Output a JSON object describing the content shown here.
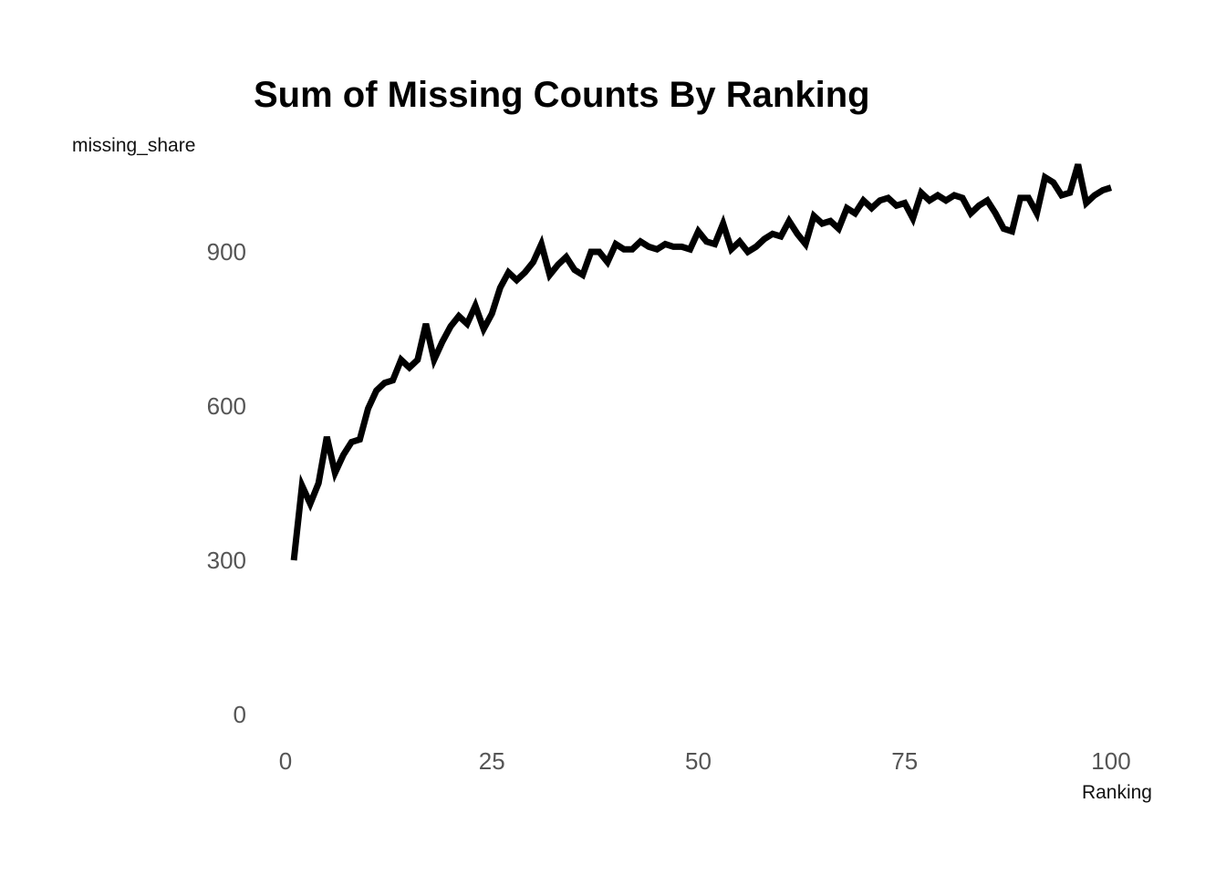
{
  "chart_data": {
    "type": "line",
    "title": "Sum of Missing Counts By Ranking",
    "xlabel": "Ranking",
    "ylabel": "missing_share",
    "xlim": [
      0,
      100
    ],
    "ylim": [
      0,
      1080
    ],
    "x_ticks": [
      0,
      25,
      50,
      75,
      100
    ],
    "y_ticks": [
      0,
      300,
      600,
      900
    ],
    "grid": false,
    "legend": "none",
    "line_color": "#000000",
    "series": [
      {
        "x": [
          1,
          2,
          3,
          4,
          5,
          6,
          7,
          8,
          9,
          10,
          11,
          12,
          13,
          14,
          15,
          16,
          17,
          18,
          19,
          20,
          21,
          22,
          23,
          24,
          25,
          26,
          27,
          28,
          29,
          30,
          31,
          32,
          33,
          34,
          35,
          36,
          37,
          38,
          39,
          40,
          41,
          42,
          43,
          44,
          45,
          46,
          47,
          48,
          49,
          50,
          51,
          52,
          53,
          54,
          55,
          56,
          57,
          58,
          59,
          60,
          61,
          62,
          63,
          64,
          65,
          66,
          67,
          68,
          69,
          70,
          71,
          72,
          73,
          74,
          75,
          76,
          77,
          78,
          79,
          80,
          81,
          82,
          83,
          84,
          85,
          86,
          87,
          88,
          89,
          90,
          91,
          92,
          93,
          94,
          95,
          96,
          97,
          98,
          99,
          100
        ],
        "values": [
          300,
          445,
          410,
          450,
          540,
          470,
          505,
          530,
          535,
          595,
          630,
          645,
          650,
          690,
          675,
          690,
          760,
          690,
          725,
          755,
          775,
          760,
          795,
          750,
          780,
          830,
          860,
          845,
          860,
          880,
          915,
          855,
          875,
          890,
          865,
          855,
          900,
          900,
          880,
          915,
          905,
          905,
          920,
          910,
          905,
          915,
          910,
          910,
          905,
          940,
          920,
          915,
          955,
          905,
          920,
          900,
          910,
          925,
          935,
          930,
          960,
          935,
          915,
          970,
          955,
          960,
          945,
          985,
          975,
          1000,
          985,
          1000,
          1005,
          990,
          995,
          965,
          1015,
          1000,
          1010,
          1000,
          1010,
          1005,
          975,
          990,
          1000,
          975,
          945,
          940,
          1005,
          1005,
          975,
          1045,
          1035,
          1010,
          1015,
          1070,
          995,
          1010,
          1020,
          1025
        ]
      }
    ]
  }
}
